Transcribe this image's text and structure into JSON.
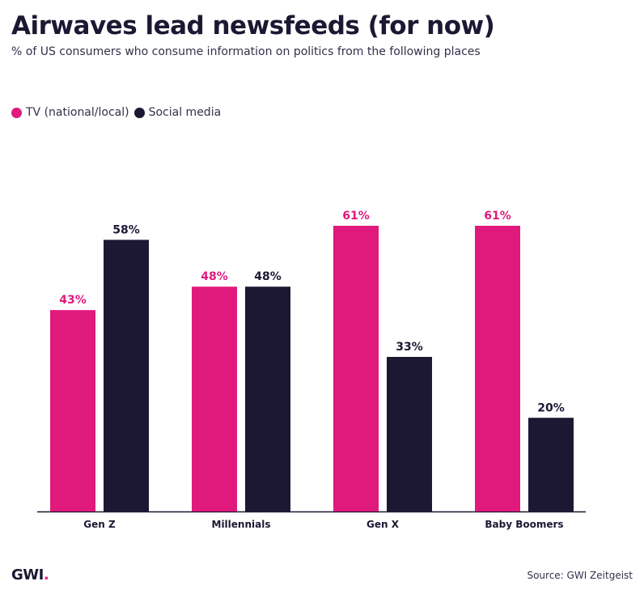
{
  "title": "Airwaves lead newsfeeds (for now)",
  "subtitle": "% of US consumers who consume information on politics from the following places",
  "legend": [
    {
      "label": "TV (national/local)",
      "color": "#e0197d"
    },
    {
      "label": "Social media",
      "color": "#1c1833"
    }
  ],
  "logo": {
    "text": "GWI",
    "dot": "."
  },
  "source": "Source: GWI Zeitgeist",
  "colors": {
    "tv": "#e0197d",
    "social": "#1c1833",
    "axis": "#1c1833"
  },
  "chart_data": {
    "type": "bar",
    "title": "Airwaves lead newsfeeds (for now)",
    "subtitle": "% of US consumers who consume information on politics from the following places",
    "categories": [
      "Gen Z",
      "Millennials",
      "Gen X",
      "Baby Boomers"
    ],
    "series": [
      {
        "name": "TV (national/local)",
        "values": [
          43,
          48,
          61,
          61
        ],
        "labels": [
          "43%",
          "48%",
          "61%",
          "61%"
        ]
      },
      {
        "name": "Social media",
        "values": [
          58,
          48,
          33,
          20
        ],
        "labels": [
          "58%",
          "48%",
          "33%",
          "20%"
        ]
      }
    ],
    "ylim": [
      0,
      61
    ],
    "xlabel": "",
    "ylabel": "",
    "grid": false,
    "legend_position": "top-left"
  }
}
